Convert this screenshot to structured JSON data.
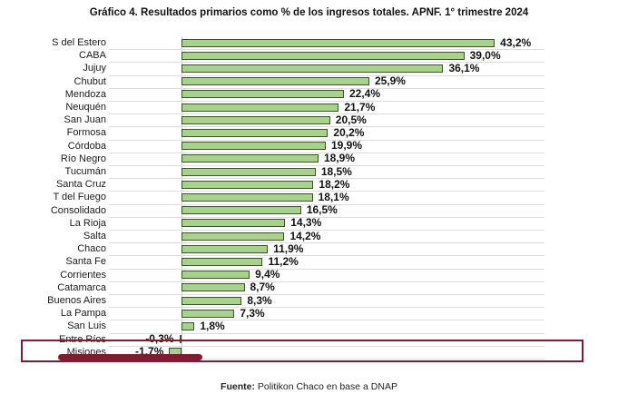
{
  "page": {
    "title": "Gráfico 4. Resultados primarios como % de los ingresos totales. APNF. 1° trimestre 2024",
    "footer_label": "Fuente:",
    "footer_text": " Politikon Chaco en base a DNAP"
  },
  "chart_data": {
    "type": "bar",
    "orientation": "horizontal",
    "title": "Gráfico 4. Resultados primarios como % de los ingresos totales. APNF. 1° trimestre 2024",
    "categories": [
      "S del Estero",
      "CABA",
      "Jujuy",
      "Chubut",
      "Mendoza",
      "Neuquén",
      "San Juan",
      "Formosa",
      "Córdoba",
      "Río Negro",
      "Tucumán",
      "Santa Cruz",
      "T del Fuego",
      "Consolidado",
      "La Rioja",
      "Salta",
      "Chaco",
      "Santa Fe",
      "Corrientes",
      "Catamarca",
      "Buenos Aires",
      "La Pampa",
      "San Luis",
      "Entre Ríos",
      "Misiones"
    ],
    "values": [
      43.2,
      39.0,
      36.1,
      25.9,
      22.4,
      21.7,
      20.5,
      20.2,
      19.9,
      18.9,
      18.5,
      18.2,
      18.1,
      16.5,
      14.3,
      14.2,
      11.9,
      11.2,
      9.4,
      8.7,
      8.3,
      7.3,
      1.8,
      -0.3,
      -1.7
    ],
    "value_labels": [
      "43,2%",
      "39,0%",
      "36,1%",
      "25,9%",
      "22,4%",
      "21,7%",
      "20,5%",
      "20,2%",
      "19,9%",
      "18,9%",
      "18,5%",
      "18,2%",
      "18,1%",
      "16,5%",
      "14,3%",
      "14,2%",
      "11,9%",
      "11,2%",
      "9,4%",
      "8,7%",
      "8,3%",
      "7,3%",
      "1,8%",
      "-0,3%",
      "-1,7%"
    ],
    "unit": "%",
    "xlim": [
      -10,
      50
    ],
    "grid": "row-separators",
    "legend": "none",
    "colors": {
      "bar_fill": "#a9d18e",
      "bar_border": "#375623",
      "gridline": "#dcdcdc",
      "axis_line": "#c9c9c9",
      "annotation": "#7f1b33"
    },
    "annotation": {
      "type": "highlight",
      "target": "Misiones",
      "elements": [
        "box-around-row",
        "thick-underline"
      ]
    }
  }
}
